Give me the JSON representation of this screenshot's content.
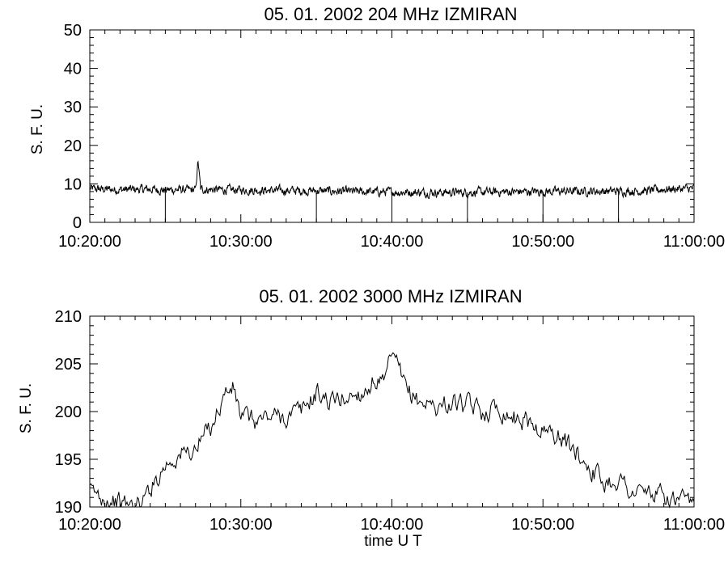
{
  "chart_data": [
    {
      "type": "line",
      "title": "05.  01.  2002    204  MHz    IZMIRAN",
      "ylabel": "S. F. U.",
      "xlabel": "",
      "x_range": [
        "10:20:00",
        "11:00:00"
      ],
      "xticks": [
        "10:20:00",
        "10:30:00",
        "10:40:00",
        "10:50:00",
        "11:00:00"
      ],
      "ylim": [
        0,
        50
      ],
      "yticks": [
        0,
        10,
        20,
        30,
        40,
        50
      ],
      "grid": false,
      "series": [
        {
          "x": [
            "10:20:00",
            "10:22:00",
            "10:24:00",
            "10:25:00",
            "10:26:00",
            "10:27:00",
            "10:27:10",
            "10:27:20",
            "10:28:00",
            "10:30:00",
            "10:32:00",
            "10:35:00",
            "10:37:00",
            "10:40:00",
            "10:42:00",
            "10:45:00",
            "10:47:00",
            "10:50:00",
            "10:52:00",
            "10:55:00",
            "10:57:00",
            "10:58:00",
            "11:00:00"
          ],
          "y": [
            8.7,
            8.5,
            8.6,
            8.4,
            8.5,
            8.3,
            16,
            8.6,
            8.5,
            8.4,
            8.3,
            8.2,
            8.0,
            7.9,
            7.8,
            7.8,
            7.9,
            8.0,
            8.1,
            8.1,
            8.2,
            8.6,
            8.8
          ],
          "dips": [
            "10:25:00",
            "10:35:00",
            "10:40:00",
            "10:45:00",
            "10:50:00",
            "10:55:00"
          ]
        }
      ]
    },
    {
      "type": "line",
      "title": "05.  01.  2002    3000  MHz    IZMIRAN",
      "ylabel": "S. F. U.",
      "xlabel": "time   U T",
      "x_range": [
        "10:20:00",
        "11:00:00"
      ],
      "xticks": [
        "10:20:00",
        "10:30:00",
        "10:40:00",
        "10:50:00",
        "11:00:00"
      ],
      "ylim": [
        190,
        210
      ],
      "yticks": [
        190,
        195,
        200,
        205,
        210
      ],
      "grid": false,
      "series": [
        {
          "x": [
            "10:20:00",
            "10:21:00",
            "10:22:00",
            "10:23:00",
            "10:23:30",
            "10:24:00",
            "10:25:00",
            "10:26:00",
            "10:27:00",
            "10:28:00",
            "10:29:00",
            "10:29:30",
            "10:30:00",
            "10:31:00",
            "10:32:00",
            "10:33:00",
            "10:34:00",
            "10:35:00",
            "10:36:00",
            "10:37:00",
            "10:38:00",
            "10:39:00",
            "10:39:30",
            "10:40:00",
            "10:40:30",
            "10:41:00",
            "10:42:00",
            "10:43:00",
            "10:44:00",
            "10:45:00",
            "10:46:00",
            "10:47:00",
            "10:48:00",
            "10:49:00",
            "10:50:00",
            "10:51:00",
            "10:52:00",
            "10:53:00",
            "10:54:00",
            "10:55:00",
            "10:56:00",
            "10:57:00",
            "10:58:00",
            "10:59:00",
            "11:00:00"
          ],
          "y": [
            191.5,
            191,
            190.5,
            190,
            190.5,
            192,
            194.5,
            195.5,
            196,
            198.5,
            202,
            202.5,
            199.5,
            199,
            199.5,
            199.5,
            200,
            202,
            201,
            201.5,
            202,
            203.5,
            202.5,
            206,
            204,
            202,
            201,
            200.5,
            201,
            200.5,
            200,
            200.5,
            199.5,
            199,
            198,
            197.5,
            196,
            194.5,
            192.5,
            193,
            191.5,
            191.5,
            191,
            190.5,
            190
          ]
        }
      ]
    }
  ]
}
